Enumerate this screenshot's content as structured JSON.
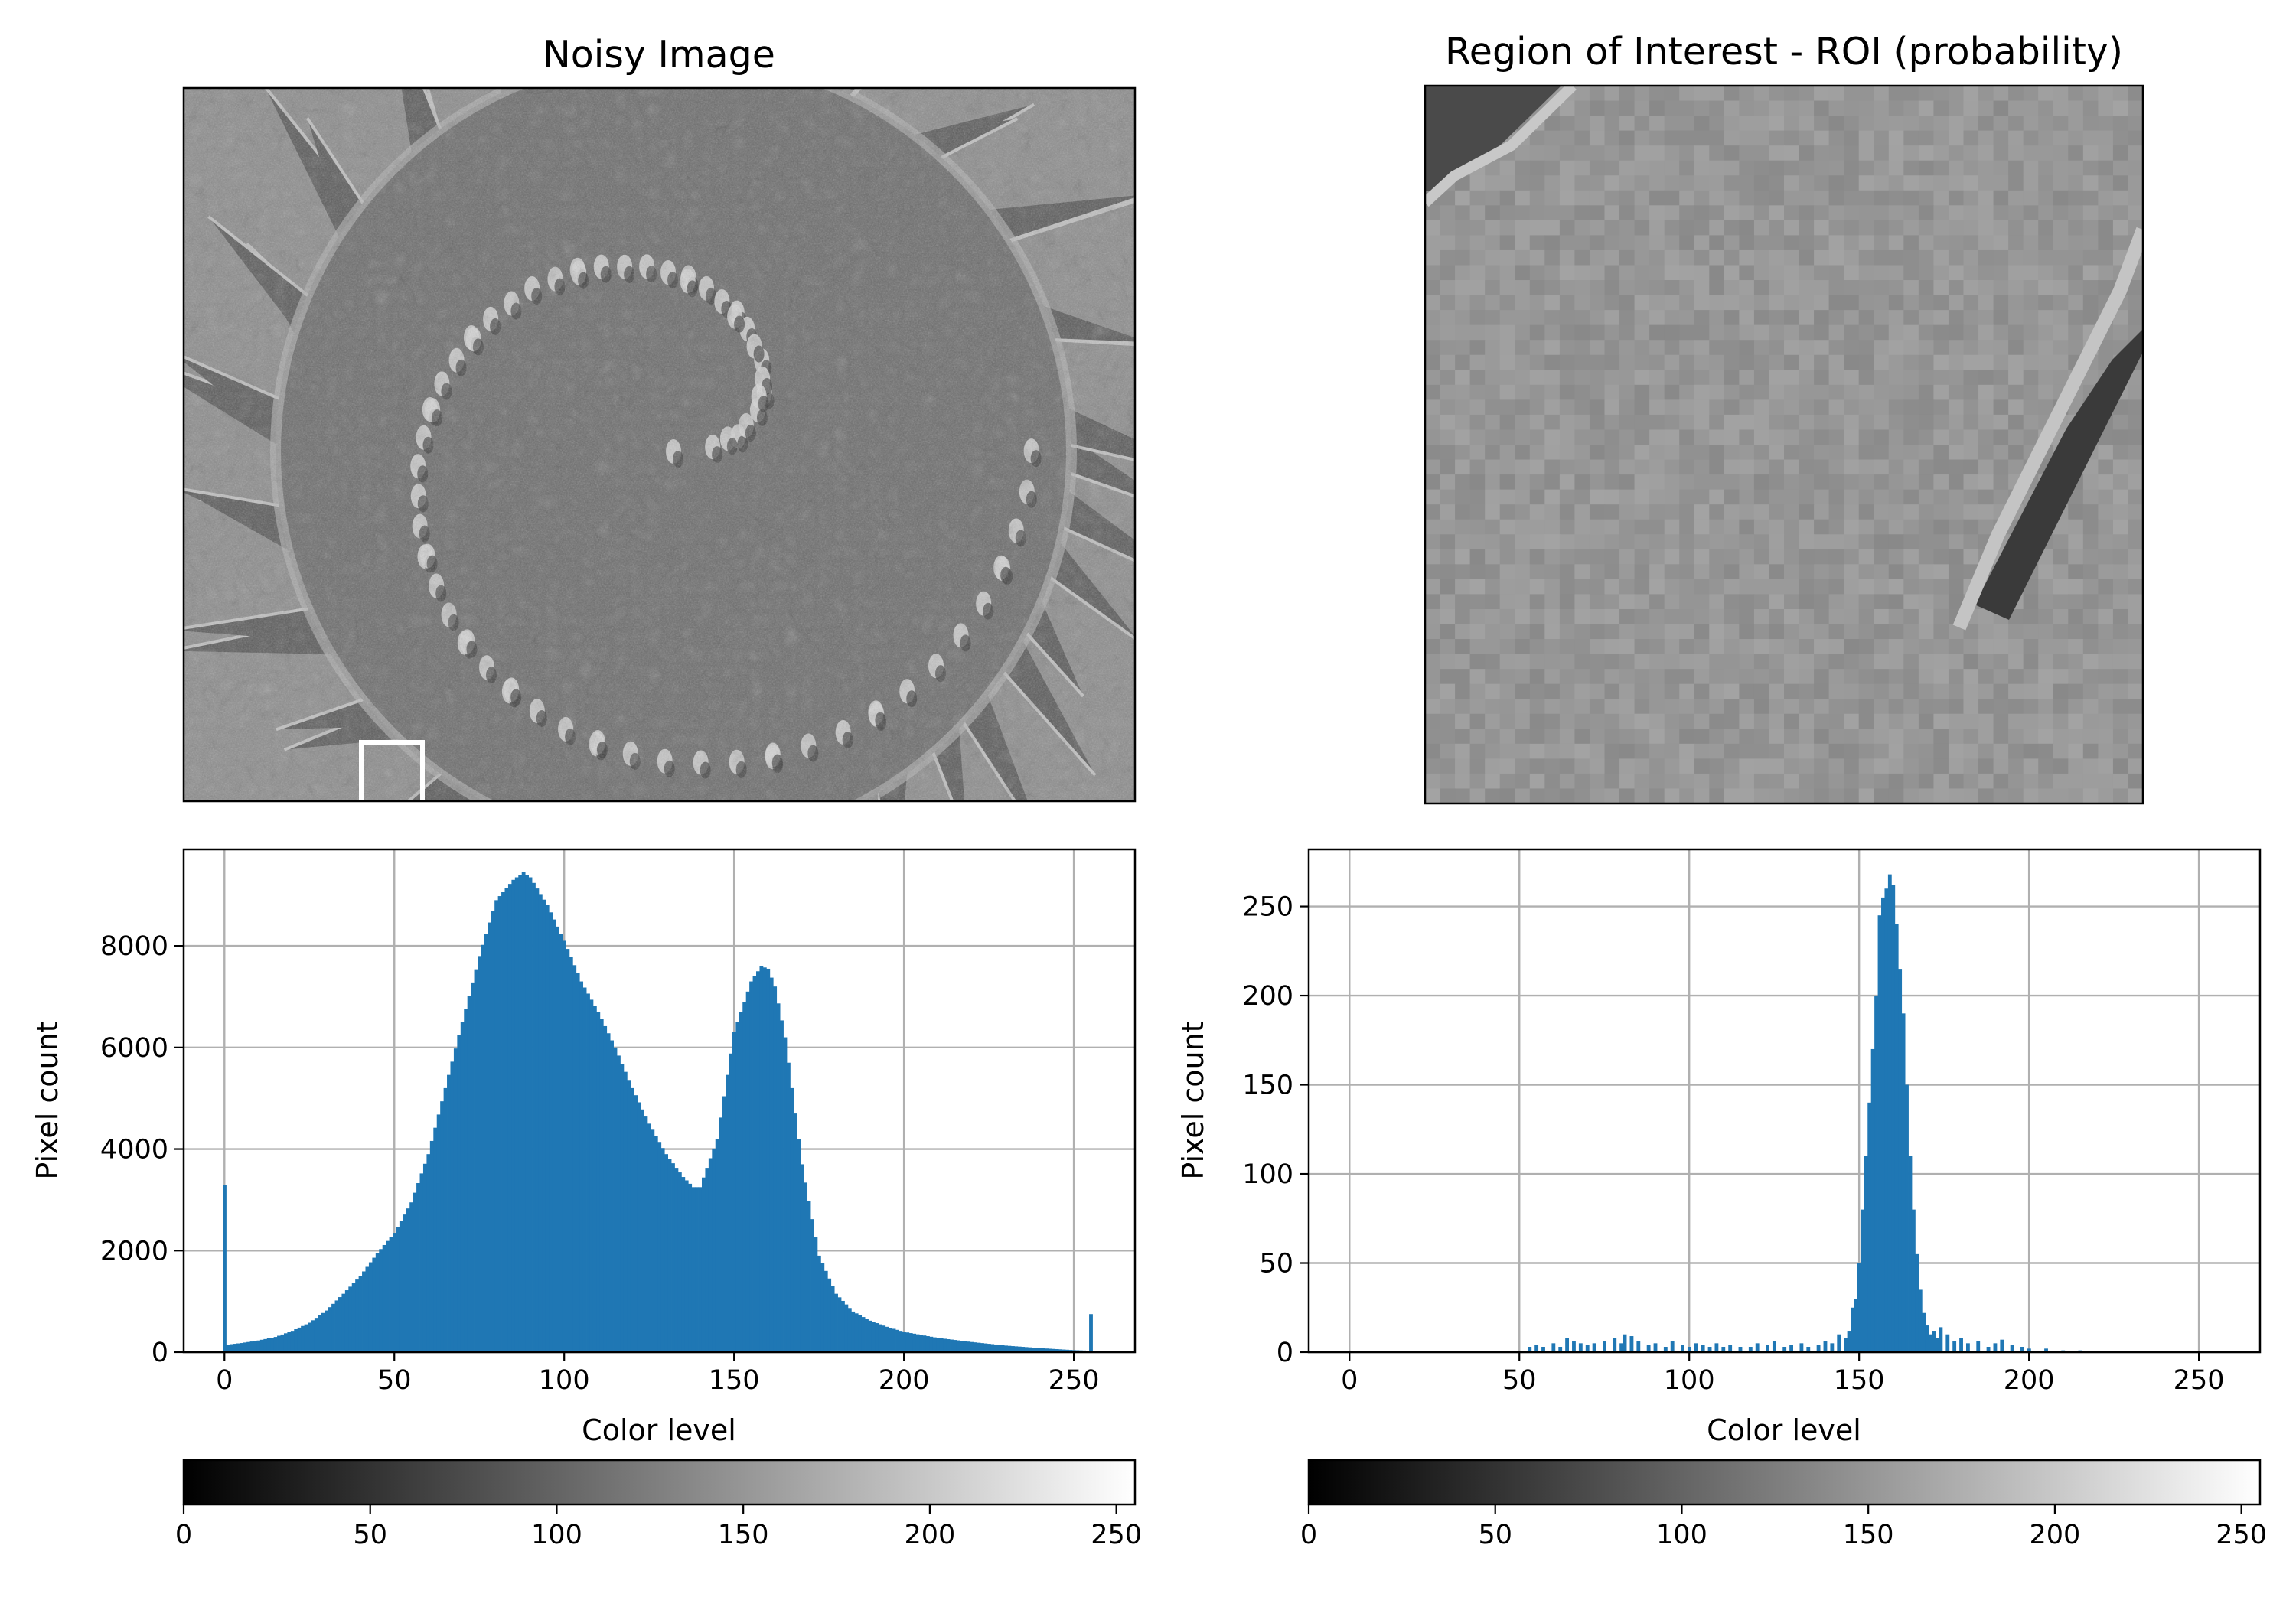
{
  "panels": {
    "noisy_image": {
      "title": "Noisy Image",
      "roi_box_color": "#ffffff"
    },
    "roi": {
      "title": "Region of Interest - ROI (probability)"
    }
  },
  "colorbar": {
    "cmap": "gray",
    "range": [
      0,
      255
    ],
    "ticks": [
      "0",
      "50",
      "100",
      "150",
      "200",
      "250"
    ]
  },
  "chart_data": [
    {
      "type": "bar",
      "name": "full-image-histogram",
      "bar_color": "#1f77b4",
      "xlabel": "Color level",
      "ylabel": "Pixel count",
      "xlim": [
        -12,
        268
      ],
      "ylim": [
        0,
        9900
      ],
      "xticks": [
        "0",
        "50",
        "100",
        "150",
        "200",
        "250"
      ],
      "yticks": [
        "0",
        "2000",
        "4000",
        "6000",
        "8000"
      ],
      "grid": true,
      "x": [
        0,
        1,
        5,
        10,
        15,
        20,
        25,
        30,
        35,
        40,
        45,
        50,
        55,
        60,
        65,
        70,
        75,
        80,
        85,
        88,
        90,
        95,
        100,
        105,
        110,
        115,
        120,
        125,
        130,
        135,
        138,
        140,
        145,
        150,
        155,
        158,
        160,
        162,
        165,
        170,
        175,
        180,
        185,
        190,
        195,
        200,
        210,
        220,
        230,
        240,
        250,
        254,
        255
      ],
      "values": [
        3300,
        150,
        180,
        230,
        300,
        420,
        580,
        820,
        1150,
        1500,
        1950,
        2350,
        2950,
        3900,
        5200,
        6500,
        7800,
        8900,
        9300,
        9450,
        9350,
        8800,
        8100,
        7300,
        6700,
        6000,
        5200,
        4500,
        3900,
        3450,
        3250,
        3250,
        4200,
        6300,
        7300,
        7600,
        7550,
        7200,
        6200,
        3700,
        1900,
        1150,
        800,
        620,
        500,
        400,
        280,
        200,
        130,
        80,
        40,
        30,
        750
      ]
    },
    {
      "type": "bar",
      "name": "roi-histogram",
      "bar_color": "#1f77b4",
      "xlabel": "Color level",
      "ylabel": "Pixel count",
      "xlim": [
        -12,
        268
      ],
      "ylim": [
        0,
        282
      ],
      "xticks": [
        "0",
        "50",
        "100",
        "150",
        "200",
        "250"
      ],
      "yticks": [
        "0",
        "50",
        "100",
        "150",
        "200",
        "250"
      ],
      "grid": true,
      "x": [
        53,
        55,
        57,
        60,
        62,
        64,
        66,
        68,
        70,
        72,
        75,
        78,
        80,
        81,
        83,
        85,
        88,
        90,
        93,
        95,
        98,
        100,
        102,
        104,
        106,
        108,
        110,
        112,
        115,
        118,
        120,
        123,
        125,
        128,
        130,
        133,
        135,
        138,
        140,
        142,
        144,
        146,
        147,
        148,
        149,
        150,
        151,
        152,
        153,
        154,
        155,
        156,
        157,
        158,
        159,
        160,
        161,
        162,
        163,
        164,
        165,
        166,
        167,
        168,
        169,
        170,
        171,
        172,
        173,
        174,
        176,
        178,
        180,
        182,
        185,
        188,
        190,
        192,
        195,
        198,
        200,
        205,
        210,
        215
      ],
      "values": [
        3,
        4,
        3,
        5,
        3,
        8,
        6,
        5,
        4,
        5,
        6,
        8,
        5,
        10,
        9,
        6,
        4,
        5,
        3,
        6,
        4,
        3,
        5,
        4,
        3,
        5,
        3,
        4,
        3,
        3,
        5,
        4,
        6,
        3,
        4,
        5,
        3,
        4,
        6,
        5,
        10,
        8,
        12,
        25,
        30,
        50,
        80,
        110,
        140,
        170,
        200,
        245,
        255,
        260,
        268,
        262,
        240,
        215,
        190,
        150,
        110,
        80,
        55,
        35,
        22,
        15,
        10,
        12,
        8,
        14,
        10,
        6,
        8,
        5,
        6,
        3,
        5,
        7,
        4,
        3,
        2,
        2,
        1,
        1
      ]
    }
  ]
}
